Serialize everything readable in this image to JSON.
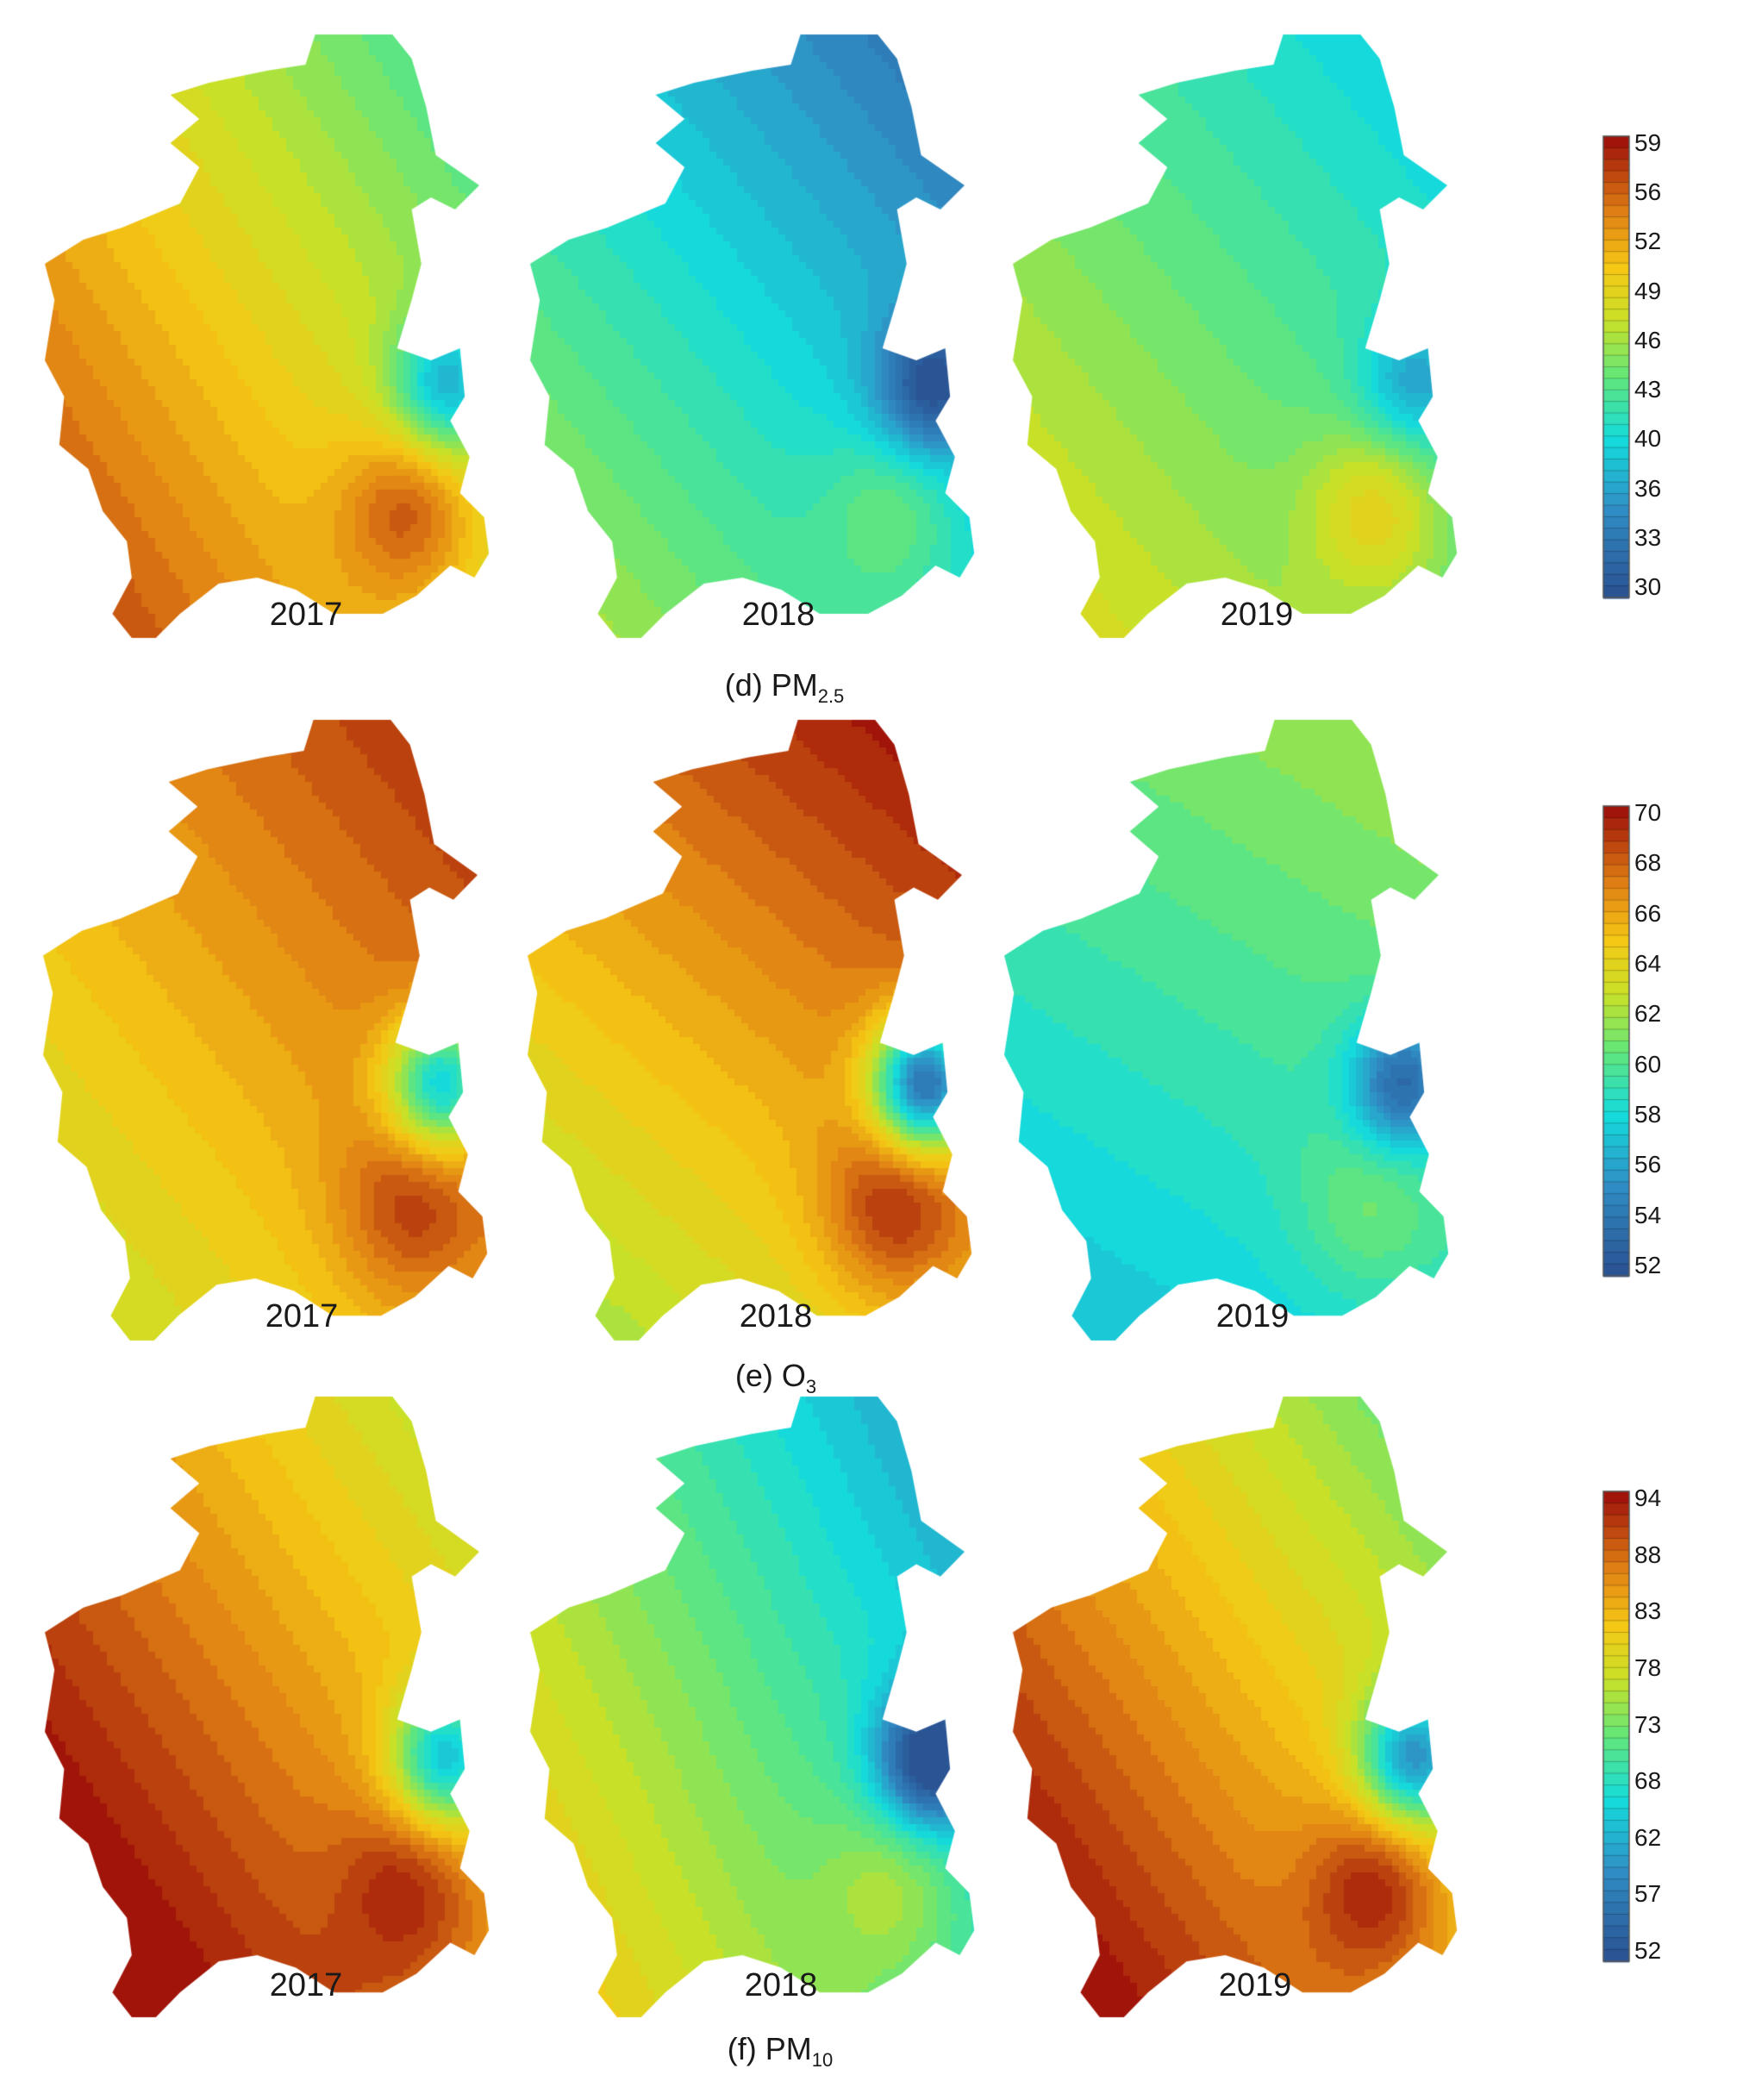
{
  "panels": [
    {
      "id": "d",
      "prefix": "(d) PM",
      "subscript": "2.5",
      "years": [
        "2017",
        "2018",
        "2019"
      ],
      "colorbar_ticks": [
        "59",
        "56",
        "52",
        "49",
        "46",
        "43",
        "40",
        "36",
        "33",
        "30"
      ],
      "colorbar_range": [
        30,
        60
      ],
      "maps": [
        {
          "year": "2017",
          "base": 50,
          "grad": [
            -10,
            -8
          ],
          "hot": 57,
          "cold": 40
        },
        {
          "year": "2018",
          "base": 40,
          "grad": [
            -8,
            -8
          ],
          "hot": 44,
          "cold": 31
        },
        {
          "year": "2019",
          "base": 44,
          "grad": [
            -6,
            -6
          ],
          "hot": 50,
          "cold": 38
        }
      ]
    },
    {
      "id": "e",
      "prefix": "(e) O",
      "subscript": "3",
      "years": [
        "2017",
        "2018",
        "2019"
      ],
      "colorbar_ticks": [
        "70",
        "68",
        "66",
        "64",
        "62",
        "60",
        "58",
        "56",
        "54",
        "52"
      ],
      "colorbar_range": [
        52,
        71
      ],
      "maps": [
        {
          "year": "2017",
          "base": 67,
          "grad": [
            4,
            4
          ],
          "hot": 70,
          "cold": 57
        },
        {
          "year": "2018",
          "base": 67,
          "grad": [
            4,
            6
          ],
          "hot": 71,
          "cold": 53
        },
        {
          "year": "2019",
          "base": 60,
          "grad": [
            2,
            4
          ],
          "hot": 62,
          "cold": 53
        }
      ]
    },
    {
      "id": "f",
      "prefix": "(f) PM",
      "subscript": "10",
      "years": [
        "2017",
        "2018",
        "2019"
      ],
      "colorbar_ticks": [
        "94",
        "88",
        "83",
        "78",
        "73",
        "68",
        "62",
        "57",
        "52"
      ],
      "colorbar_range": [
        52,
        96
      ],
      "maps": [
        {
          "year": "2017",
          "base": 88,
          "grad": [
            -14,
            -12
          ],
          "hot": 95,
          "cold": 68
        },
        {
          "year": "2018",
          "base": 72,
          "grad": [
            -16,
            -10
          ],
          "hot": 78,
          "cold": 52
        },
        {
          "year": "2019",
          "base": 85,
          "grad": [
            -16,
            -14
          ],
          "hot": 95,
          "cold": 64
        }
      ]
    }
  ]
}
